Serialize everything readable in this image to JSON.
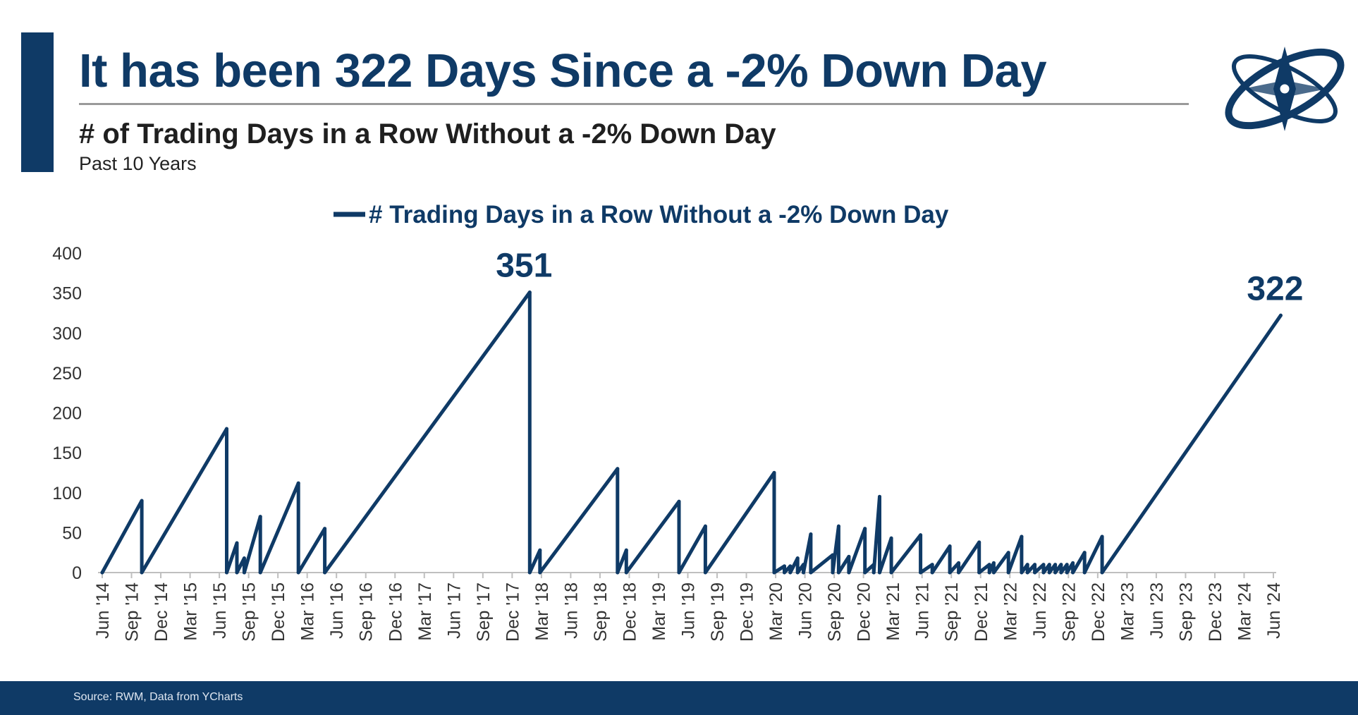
{
  "header": {
    "title": "It has been 322 Days Since a -2% Down Day",
    "subtitle": "# of Trading Days in a Row Without a -2% Down Day",
    "period": "Past 10 Years"
  },
  "footer": {
    "source": "Source: RWM, Data from YCharts"
  },
  "colors": {
    "brand_navy": "#0f3a66",
    "line": "#0f3a66",
    "axis": "#bfbfbf",
    "tick_text": "#333333"
  },
  "logo": {
    "icon": "compass-orbit-logo"
  },
  "chart_data": {
    "type": "line",
    "legend": "# Trading Days in a Row Without a -2% Down Day",
    "legend_position": "top-center",
    "grid": false,
    "ylim": [
      0,
      400
    ],
    "yticks": [
      0,
      50,
      100,
      150,
      200,
      250,
      300,
      350,
      400
    ],
    "x_tick_labels": [
      "Jun '14",
      "Sep '14",
      "Dec '14",
      "Mar '15",
      "Jun '15",
      "Sep '15",
      "Dec '15",
      "Mar '16",
      "Jun '16",
      "Sep '16",
      "Dec '16",
      "Mar '17",
      "Jun '17",
      "Sep '17",
      "Dec '17",
      "Mar '18",
      "Jun '18",
      "Sep '18",
      "Dec '18",
      "Mar '19",
      "Jun '19",
      "Sep '19",
      "Dec '19",
      "Mar '20",
      "Jun '20",
      "Sep '20",
      "Dec '20",
      "Mar '21",
      "Jun '21",
      "Sep '21",
      "Dec '21",
      "Mar '22",
      "Jun '22",
      "Sep '22",
      "Dec '22",
      "Mar '23",
      "Jun '23",
      "Sep '23",
      "Dec '23",
      "Mar '24",
      "Jun '24"
    ],
    "x_unit": "quarters since Jun '14",
    "x": [
      0,
      1.35,
      1.35,
      4.25,
      4.25,
      4.6,
      4.6,
      4.85,
      4.85,
      5.4,
      5.4,
      6.7,
      6.7,
      7.6,
      7.6,
      14.6,
      14.6,
      14.95,
      14.95,
      17.6,
      17.6,
      17.9,
      17.9,
      19.7,
      19.7,
      20.6,
      20.6,
      22.95,
      22.95,
      23.3,
      23.3,
      23.5,
      23.5,
      23.75,
      23.75,
      23.95,
      23.95,
      24.2,
      24.2,
      24.95,
      24.95,
      25.15,
      25.15,
      25.5,
      25.5,
      26.05,
      26.05,
      26.35,
      26.35,
      26.55,
      26.55,
      26.95,
      26.95,
      27.95,
      27.95,
      28.35,
      28.35,
      28.95,
      28.95,
      29.25,
      29.25,
      29.95,
      29.95,
      30.3,
      30.3,
      30.45,
      30.45,
      30.95,
      30.95,
      31.4,
      31.4,
      31.6,
      31.6,
      31.85,
      31.85,
      32.15,
      32.15,
      32.35,
      32.35,
      32.55,
      32.55,
      32.75,
      32.75,
      32.95,
      32.95,
      33.15,
      33.15,
      33.55,
      33.55,
      34.15,
      34.15,
      40.25
    ],
    "y": [
      0,
      90,
      0,
      180,
      0,
      37,
      0,
      18,
      0,
      70,
      0,
      112,
      0,
      55,
      0,
      351,
      0,
      28,
      0,
      130,
      0,
      28,
      0,
      89,
      0,
      58,
      0,
      125,
      0,
      8,
      0,
      8,
      0,
      18,
      0,
      10,
      0,
      48,
      0,
      22,
      0,
      58,
      0,
      20,
      0,
      55,
      0,
      10,
      0,
      95,
      0,
      43,
      0,
      47,
      0,
      10,
      0,
      33,
      0,
      12,
      0,
      38,
      0,
      10,
      0,
      12,
      0,
      25,
      0,
      45,
      0,
      10,
      0,
      10,
      0,
      10,
      0,
      10,
      0,
      10,
      0,
      10,
      0,
      10,
      0,
      12,
      0,
      25,
      0,
      45,
      0,
      322
    ],
    "annotations": [
      {
        "text": "351",
        "x": 14.6,
        "y": 351
      },
      {
        "text": "322",
        "x": 40.25,
        "y": 322
      }
    ]
  }
}
